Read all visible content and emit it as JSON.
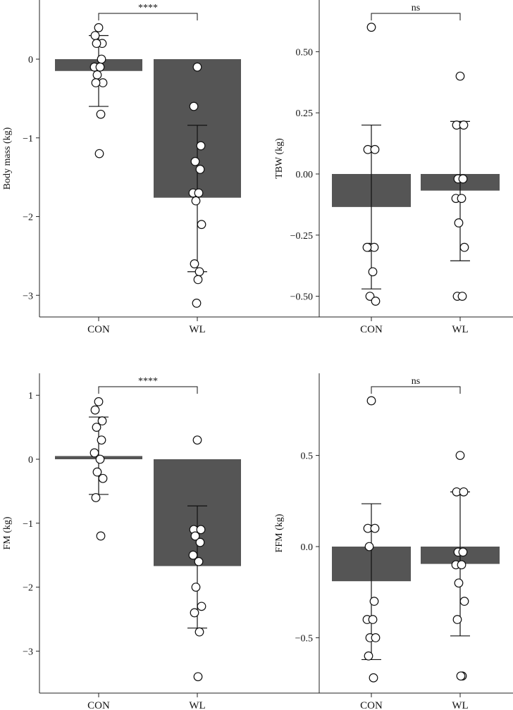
{
  "colors": {
    "bar": "#555555",
    "axis": "#222222",
    "point_stroke": "#111111",
    "point_fill": "#ffffff"
  },
  "chart_data": [
    {
      "type": "bar",
      "ylabel": "Body mass (kg)",
      "categories": [
        "CON",
        "WL"
      ],
      "ylim": [
        -3.25,
        0.72
      ],
      "yticks": [
        0,
        -1,
        -2,
        -3
      ],
      "ytick_labels": [
        "0",
        "−1",
        "−2",
        "−3"
      ],
      "means": [
        -0.15,
        -1.76
      ],
      "error_low": [
        -0.6,
        -2.7
      ],
      "error_high": [
        0.3,
        -0.84
      ],
      "points": [
        [
          0.4,
          0.3,
          0.2,
          0.2,
          0.0,
          -0.1,
          -0.1,
          -0.2,
          -0.3,
          -0.3,
          -0.7,
          -1.2
        ],
        [
          -0.1,
          -0.6,
          -1.1,
          -1.3,
          -1.4,
          -1.7,
          -1.7,
          -1.8,
          -2.1,
          -2.6,
          -2.7,
          -2.8,
          -3.1
        ]
      ],
      "significance": "****"
    },
    {
      "type": "bar",
      "ylabel": "TBW (kg)",
      "categories": [
        "CON",
        "WL"
      ],
      "ylim": [
        -0.585,
        0.71
      ],
      "yticks": [
        0.5,
        0.25,
        0,
        -0.25,
        -0.5
      ],
      "ytick_labels": [
        "0.50",
        "0.25",
        "0.00",
        "−0.25",
        "−0.50"
      ],
      "means": [
        -0.135,
        -0.068
      ],
      "error_low": [
        -0.47,
        -0.355
      ],
      "error_high": [
        0.2,
        0.215
      ],
      "points": [
        [
          0.6,
          0.1,
          0.1,
          -0.3,
          -0.3,
          -0.3,
          -0.4,
          -0.5,
          -0.52
        ],
        [
          0.4,
          0.2,
          0.2,
          -0.02,
          -0.02,
          -0.1,
          -0.1,
          -0.2,
          -0.3,
          -0.5,
          -0.5
        ]
      ],
      "significance": "ns"
    },
    {
      "type": "bar",
      "ylabel": "FM (kg)",
      "categories": [
        "CON",
        "WL"
      ],
      "ylim": [
        -3.6,
        1.35
      ],
      "yticks": [
        1,
        0,
        -1,
        -2,
        -3
      ],
      "ytick_labels": [
        "1",
        "0",
        "−1",
        "−2",
        "−3"
      ],
      "means": [
        0.05,
        -1.67
      ],
      "error_low": [
        -0.55,
        -2.64
      ],
      "error_high": [
        0.66,
        -0.73
      ],
      "points": [
        [
          0.9,
          0.77,
          0.6,
          0.5,
          0.3,
          0.1,
          0.0,
          -0.2,
          -0.3,
          -0.6,
          -1.2
        ],
        [
          0.3,
          -1.1,
          -1.1,
          -1.2,
          -1.3,
          -1.5,
          -1.6,
          -2.0,
          -2.3,
          -2.4,
          -2.7,
          -3.4
        ]
      ],
      "significance": "****"
    },
    {
      "type": "bar",
      "ylabel": "FFM (kg)",
      "categories": [
        "CON",
        "WL"
      ],
      "ylim": [
        -0.8,
        0.99
      ],
      "yticks": [
        0.5,
        0,
        -0.5
      ],
      "ytick_labels": [
        "0.5",
        "0.0",
        "−0.5"
      ],
      "means": [
        -0.19,
        -0.095
      ],
      "error_low": [
        -0.62,
        -0.49
      ],
      "error_high": [
        0.235,
        0.3
      ],
      "points": [
        [
          0.8,
          0.1,
          0.1,
          0.0,
          -0.3,
          -0.4,
          -0.4,
          -0.5,
          -0.5,
          -0.6,
          -0.72
        ],
        [
          0.5,
          0.3,
          0.3,
          -0.03,
          -0.03,
          -0.1,
          -0.1,
          -0.2,
          -0.3,
          -0.4,
          -0.71,
          -0.71
        ]
      ],
      "significance": "ns"
    }
  ]
}
